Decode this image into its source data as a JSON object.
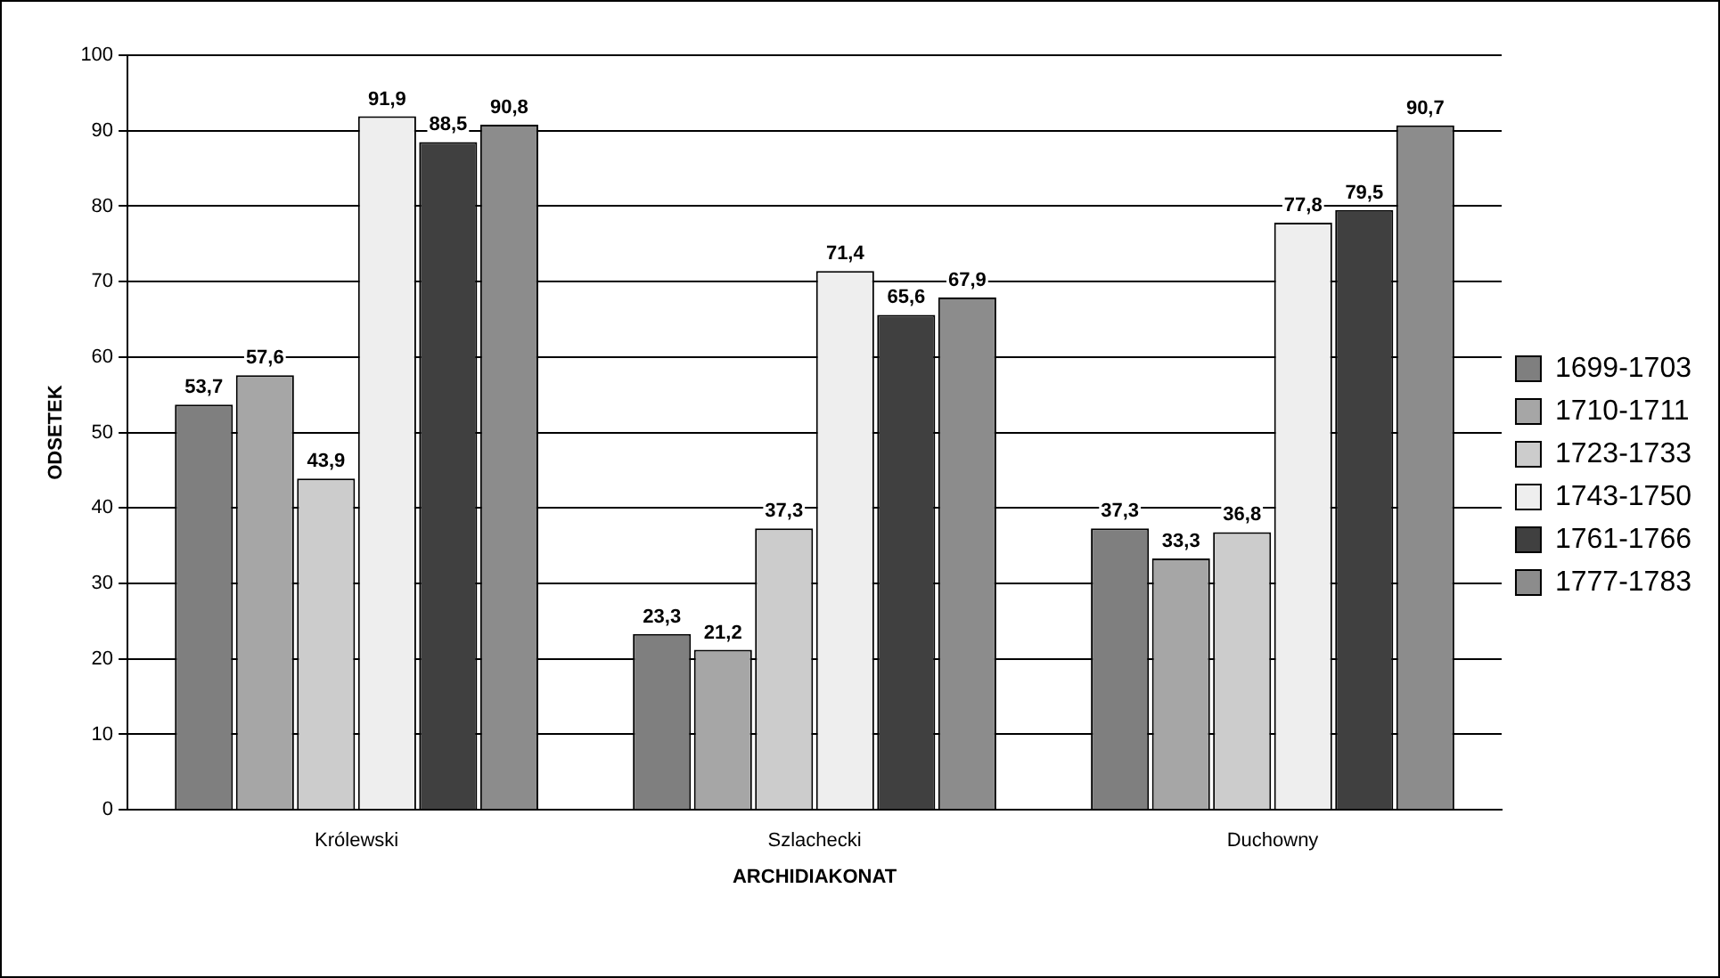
{
  "chart_data": {
    "type": "bar",
    "xlabel": "ARCHIDIAKONAT",
    "ylabel": "ODSETEK",
    "categories": [
      "Królewski",
      "Szlachecki",
      "Duchowny"
    ],
    "series": [
      {
        "name": "1699-1703",
        "color": "#7f7f7f",
        "values": [
          53.7,
          23.3,
          37.3
        ],
        "value_labels": [
          "53,7",
          "23,3",
          "37,3"
        ]
      },
      {
        "name": "1710-1711",
        "color": "#a6a6a6",
        "values": [
          57.6,
          21.2,
          33.3
        ],
        "value_labels": [
          "57,6",
          "21,2",
          "33,3"
        ]
      },
      {
        "name": "1723-1733",
        "color": "#cccccc",
        "values": [
          43.9,
          37.3,
          36.8
        ],
        "value_labels": [
          "43,9",
          "37,3",
          "36,8"
        ]
      },
      {
        "name": "1743-1750",
        "color": "#eeeeee",
        "values": [
          91.9,
          71.4,
          77.8
        ],
        "value_labels": [
          "91,9",
          "71,4",
          "77,8"
        ]
      },
      {
        "name": "1761-1766",
        "color": "#404040",
        "values": [
          88.5,
          65.6,
          79.5
        ],
        "value_labels": [
          "88,5",
          "65,6",
          "79,5"
        ]
      },
      {
        "name": "1777-1783",
        "color": "#8c8c8c",
        "values": [
          90.8,
          67.9,
          90.7
        ],
        "value_labels": [
          "90,8",
          "67,9",
          "90,7"
        ]
      }
    ],
    "ylim": [
      0,
      100
    ],
    "yticks": [
      0,
      10,
      20,
      30,
      40,
      50,
      60,
      70,
      80,
      90,
      100
    ],
    "grid": "y",
    "legend": "right"
  }
}
